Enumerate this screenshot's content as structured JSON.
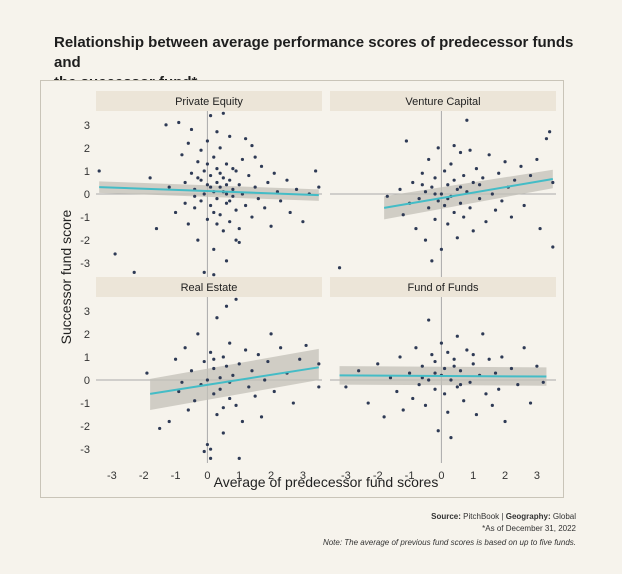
{
  "title_line1": "Relationship between average performance scores of predecessor funds and",
  "title_line2": "the successor fund*",
  "source": {
    "source_label": "Source:",
    "source_value": "PitchBook",
    "separator": "|",
    "geography_label": "Geography:",
    "geography_value": "Global",
    "asof": "*As of December 31, 2022",
    "note": "Note: The average of previous fund scores is based on up to five funds."
  },
  "colors": {
    "point": "#2e3a55",
    "trend": "#44bcc6",
    "band": "#c3c0b8",
    "panel_header": "#ece5d8",
    "axis_line": "#aaaaaa"
  },
  "chart_data": {
    "type": "scatter",
    "xlabel": "Average of predecessor fund scores",
    "ylabel": "Successor fund score",
    "xlim": [
      -3.5,
      3.6
    ],
    "ylim": [
      -3.6,
      3.6
    ],
    "xticks": [
      -3,
      -2,
      -1,
      0,
      1,
      2,
      3
    ],
    "yticks": [
      -3,
      -2,
      -1,
      0,
      1,
      2,
      3
    ],
    "grid": false,
    "panels": [
      {
        "name": "Private Equity",
        "trend": {
          "x": [
            -3.4,
            3.5
          ],
          "y": [
            0.3,
            -0.05
          ],
          "band_low": [
            0.05,
            -0.3
          ],
          "band_high": [
            0.55,
            0.2
          ]
        },
        "points": [
          [
            -3.4,
            1.0
          ],
          [
            -2.9,
            -2.6
          ],
          [
            -2.3,
            -3.4
          ],
          [
            -1.8,
            0.7
          ],
          [
            -1.6,
            -1.5
          ],
          [
            -1.3,
            3.0
          ],
          [
            -1.2,
            0.3
          ],
          [
            -1.0,
            -0.8
          ],
          [
            -0.9,
            3.1
          ],
          [
            -0.8,
            1.7
          ],
          [
            -0.7,
            0.5
          ],
          [
            -0.6,
            -1.3
          ],
          [
            -0.5,
            2.8
          ],
          [
            -0.5,
            0.9
          ],
          [
            -0.4,
            0.2
          ],
          [
            -0.4,
            -0.6
          ],
          [
            -0.3,
            1.4
          ],
          [
            -0.3,
            -2.0
          ],
          [
            -0.2,
            0.6
          ],
          [
            -0.2,
            -0.3
          ],
          [
            -0.1,
            1.0
          ],
          [
            -0.1,
            0.0
          ],
          [
            0.0,
            0.4
          ],
          [
            0.0,
            -1.1
          ],
          [
            0.0,
            2.3
          ],
          [
            0.1,
            3.4
          ],
          [
            0.1,
            0.8
          ],
          [
            0.1,
            -0.5
          ],
          [
            0.2,
            1.6
          ],
          [
            0.2,
            0.1
          ],
          [
            0.2,
            -2.4
          ],
          [
            0.3,
            0.5
          ],
          [
            0.3,
            -0.2
          ],
          [
            0.3,
            1.1
          ],
          [
            0.4,
            2.0
          ],
          [
            0.4,
            0.3
          ],
          [
            0.4,
            -0.9
          ],
          [
            0.5,
            0.7
          ],
          [
            0.5,
            -1.6
          ],
          [
            0.5,
            3.5
          ],
          [
            0.6,
            0.0
          ],
          [
            0.6,
            1.3
          ],
          [
            0.6,
            -0.4
          ],
          [
            0.7,
            0.6
          ],
          [
            0.7,
            2.5
          ],
          [
            0.7,
            -1.2
          ],
          [
            0.8,
            0.2
          ],
          [
            0.8,
            -0.1
          ],
          [
            0.9,
            1.0
          ],
          [
            0.9,
            -0.7
          ],
          [
            1.0,
            0.4
          ],
          [
            1.0,
            -2.1
          ],
          [
            1.1,
            1.5
          ],
          [
            1.1,
            0.0
          ],
          [
            1.2,
            -0.5
          ],
          [
            1.3,
            0.8
          ],
          [
            1.4,
            2.1
          ],
          [
            1.4,
            -1.0
          ],
          [
            1.5,
            0.3
          ],
          [
            1.6,
            -0.2
          ],
          [
            1.7,
            1.2
          ],
          [
            1.8,
            -0.6
          ],
          [
            1.9,
            0.5
          ],
          [
            2.0,
            -1.4
          ],
          [
            2.1,
            0.9
          ],
          [
            2.2,
            0.1
          ],
          [
            2.3,
            -0.3
          ],
          [
            2.5,
            0.6
          ],
          [
            2.6,
            -0.8
          ],
          [
            2.8,
            0.2
          ],
          [
            3.0,
            -1.2
          ],
          [
            3.2,
            0.0
          ],
          [
            3.4,
            1.0
          ],
          [
            3.5,
            0.3
          ],
          [
            -0.2,
            1.9
          ],
          [
            0.3,
            2.7
          ],
          [
            0.6,
            -2.9
          ],
          [
            -0.1,
            -3.4
          ],
          [
            0.2,
            -3.5
          ],
          [
            0.9,
            -2.0
          ],
          [
            1.2,
            2.4
          ],
          [
            -0.6,
            2.2
          ],
          [
            0.4,
            0.9
          ],
          [
            0.1,
            0.3
          ],
          [
            -0.3,
            0.7
          ],
          [
            0.5,
            0.1
          ],
          [
            0.7,
            -0.3
          ],
          [
            0.0,
            1.3
          ],
          [
            0.2,
            -0.8
          ],
          [
            -0.4,
            -0.1
          ],
          [
            0.8,
            1.1
          ],
          [
            1.0,
            -1.5
          ],
          [
            0.3,
            -1.3
          ],
          [
            -0.7,
            -0.4
          ],
          [
            1.5,
            1.6
          ],
          [
            0.6,
            0.4
          ]
        ]
      },
      {
        "name": "Venture Capital",
        "trend": {
          "x": [
            -1.8,
            3.5
          ],
          "y": [
            -0.6,
            0.65
          ],
          "band_low": [
            -1.1,
            0.25
          ],
          "band_high": [
            -0.1,
            1.05
          ]
        },
        "points": [
          [
            -3.2,
            -3.2
          ],
          [
            -1.7,
            -0.1
          ],
          [
            -1.3,
            0.2
          ],
          [
            -1.2,
            -0.9
          ],
          [
            -1.1,
            2.3
          ],
          [
            -1.0,
            -0.4
          ],
          [
            -0.9,
            0.5
          ],
          [
            -0.8,
            -1.5
          ],
          [
            -0.7,
            -0.2
          ],
          [
            -0.6,
            0.9
          ],
          [
            -0.5,
            -2.0
          ],
          [
            -0.5,
            0.1
          ],
          [
            -0.4,
            1.5
          ],
          [
            -0.4,
            -0.6
          ],
          [
            -0.3,
            0.3
          ],
          [
            -0.2,
            -1.1
          ],
          [
            -0.2,
            0.7
          ],
          [
            -0.1,
            -0.3
          ],
          [
            -0.1,
            2.0
          ],
          [
            0.0,
            0.0
          ],
          [
            0.0,
            -2.4
          ],
          [
            0.1,
            1.0
          ],
          [
            0.1,
            -0.5
          ],
          [
            0.2,
            0.4
          ],
          [
            0.2,
            -1.3
          ],
          [
            0.3,
            -0.1
          ],
          [
            0.3,
            1.3
          ],
          [
            0.4,
            0.6
          ],
          [
            0.4,
            -0.8
          ],
          [
            0.5,
            0.2
          ],
          [
            0.5,
            -1.9
          ],
          [
            0.6,
            1.8
          ],
          [
            0.6,
            -0.4
          ],
          [
            0.7,
            0.8
          ],
          [
            0.7,
            -1.0
          ],
          [
            0.8,
            0.1
          ],
          [
            0.8,
            3.2
          ],
          [
            0.9,
            -0.6
          ],
          [
            1.0,
            0.5
          ],
          [
            1.0,
            -1.6
          ],
          [
            1.1,
            1.1
          ],
          [
            1.2,
            -0.2
          ],
          [
            1.3,
            0.7
          ],
          [
            1.4,
            -1.2
          ],
          [
            1.5,
            1.7
          ],
          [
            1.6,
            0.0
          ],
          [
            1.7,
            -0.7
          ],
          [
            1.8,
            0.9
          ],
          [
            1.9,
            -0.3
          ],
          [
            2.0,
            1.4
          ],
          [
            2.1,
            0.3
          ],
          [
            2.2,
            -1.0
          ],
          [
            2.3,
            0.6
          ],
          [
            2.5,
            1.2
          ],
          [
            2.6,
            -0.5
          ],
          [
            2.8,
            0.8
          ],
          [
            3.0,
            1.5
          ],
          [
            3.1,
            -1.5
          ],
          [
            3.3,
            2.4
          ],
          [
            3.4,
            2.7
          ],
          [
            3.5,
            0.5
          ],
          [
            3.5,
            -2.3
          ],
          [
            -0.3,
            -2.9
          ],
          [
            0.4,
            2.1
          ],
          [
            -0.6,
            0.4
          ],
          [
            0.2,
            -0.2
          ],
          [
            0.6,
            0.3
          ],
          [
            -0.2,
            0.0
          ],
          [
            0.9,
            1.9
          ],
          [
            1.2,
            0.4
          ]
        ]
      },
      {
        "name": "Real Estate",
        "trend": {
          "x": [
            -1.8,
            3.5
          ],
          "y": [
            -0.6,
            0.55
          ],
          "band_low": [
            -1.3,
            0.0
          ],
          "band_high": [
            0.05,
            1.35
          ]
        },
        "points": [
          [
            -1.9,
            0.3
          ],
          [
            -1.5,
            -2.1
          ],
          [
            -1.2,
            -1.8
          ],
          [
            -1.0,
            0.9
          ],
          [
            -0.9,
            -0.5
          ],
          [
            -0.7,
            1.4
          ],
          [
            -0.6,
            -1.3
          ],
          [
            -0.5,
            0.4
          ],
          [
            -0.4,
            -0.9
          ],
          [
            -0.3,
            2.0
          ],
          [
            -0.2,
            -0.2
          ],
          [
            -0.1,
            0.8
          ],
          [
            0.0,
            -2.8
          ],
          [
            0.0,
            0.0
          ],
          [
            0.1,
            1.2
          ],
          [
            0.1,
            -3.0
          ],
          [
            0.2,
            -0.6
          ],
          [
            0.2,
            0.5
          ],
          [
            0.3,
            -1.5
          ],
          [
            0.3,
            2.7
          ],
          [
            0.4,
            0.1
          ],
          [
            0.4,
            -0.4
          ],
          [
            0.5,
            1.0
          ],
          [
            0.5,
            -2.3
          ],
          [
            0.6,
            0.6
          ],
          [
            0.6,
            3.2
          ],
          [
            0.7,
            -0.8
          ],
          [
            0.7,
            1.6
          ],
          [
            0.8,
            0.2
          ],
          [
            0.9,
            -1.1
          ],
          [
            0.9,
            3.5
          ],
          [
            1.0,
            0.7
          ],
          [
            1.1,
            -1.8
          ],
          [
            1.2,
            1.3
          ],
          [
            1.3,
            -0.3
          ],
          [
            1.4,
            0.4
          ],
          [
            1.5,
            -0.7
          ],
          [
            1.6,
            1.1
          ],
          [
            1.7,
            -1.6
          ],
          [
            1.8,
            0.0
          ],
          [
            1.9,
            0.8
          ],
          [
            2.0,
            2.0
          ],
          [
            2.1,
            -0.5
          ],
          [
            2.3,
            1.4
          ],
          [
            2.5,
            0.3
          ],
          [
            2.7,
            -1.0
          ],
          [
            2.9,
            0.9
          ],
          [
            3.1,
            1.5
          ],
          [
            3.5,
            0.7
          ],
          [
            3.5,
            -0.3
          ],
          [
            0.1,
            -3.4
          ],
          [
            -0.1,
            -3.1
          ],
          [
            1.0,
            -3.4
          ],
          [
            0.5,
            -1.2
          ],
          [
            -0.8,
            -0.1
          ],
          [
            0.2,
            0.9
          ],
          [
            0.7,
            -0.1
          ]
        ]
      },
      {
        "name": "Fund of Funds",
        "trend": {
          "x": [
            -3.2,
            3.3
          ],
          "y": [
            0.2,
            0.15
          ],
          "band_low": [
            -0.2,
            -0.25
          ],
          "band_high": [
            0.6,
            0.55
          ]
        },
        "points": [
          [
            -3.0,
            -0.3
          ],
          [
            -2.6,
            0.4
          ],
          [
            -2.3,
            -1.0
          ],
          [
            -2.0,
            0.7
          ],
          [
            -1.8,
            -1.6
          ],
          [
            -1.6,
            0.1
          ],
          [
            -1.4,
            -0.5
          ],
          [
            -1.3,
            1.0
          ],
          [
            -1.2,
            -1.3
          ],
          [
            -1.0,
            0.3
          ],
          [
            -0.9,
            -0.8
          ],
          [
            -0.8,
            1.4
          ],
          [
            -0.7,
            -0.2
          ],
          [
            -0.6,
            0.6
          ],
          [
            -0.5,
            -1.1
          ],
          [
            -0.4,
            2.6
          ],
          [
            -0.4,
            0.0
          ],
          [
            -0.3,
            1.1
          ],
          [
            -0.2,
            -0.4
          ],
          [
            -0.2,
            0.8
          ],
          [
            -0.1,
            -2.2
          ],
          [
            0.0,
            0.2
          ],
          [
            0.0,
            1.6
          ],
          [
            0.1,
            -0.6
          ],
          [
            0.1,
            0.5
          ],
          [
            0.2,
            -1.4
          ],
          [
            0.2,
            1.2
          ],
          [
            0.3,
            0.0
          ],
          [
            0.3,
            -2.5
          ],
          [
            0.4,
            0.9
          ],
          [
            0.5,
            -0.3
          ],
          [
            0.5,
            1.9
          ],
          [
            0.6,
            0.4
          ],
          [
            0.7,
            -0.9
          ],
          [
            0.8,
            1.3
          ],
          [
            0.9,
            -0.1
          ],
          [
            1.0,
            0.7
          ],
          [
            1.1,
            -1.5
          ],
          [
            1.2,
            0.2
          ],
          [
            1.3,
            2.0
          ],
          [
            1.4,
            -0.6
          ],
          [
            1.5,
            0.9
          ],
          [
            1.6,
            -1.1
          ],
          [
            1.7,
            0.3
          ],
          [
            1.8,
            -0.4
          ],
          [
            1.9,
            1.0
          ],
          [
            2.0,
            -1.8
          ],
          [
            2.2,
            0.5
          ],
          [
            2.4,
            -0.2
          ],
          [
            2.6,
            1.4
          ],
          [
            2.8,
            -1.0
          ],
          [
            3.0,
            0.6
          ],
          [
            3.2,
            -0.1
          ],
          [
            -0.2,
            0.3
          ],
          [
            0.4,
            0.6
          ],
          [
            0.6,
            -0.2
          ],
          [
            -0.6,
            0.1
          ],
          [
            1.0,
            1.1
          ]
        ]
      }
    ]
  }
}
